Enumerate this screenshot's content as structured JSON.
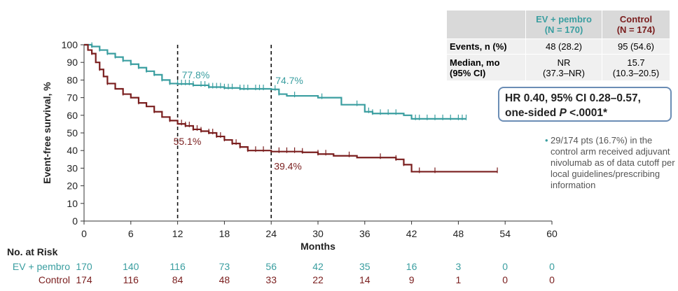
{
  "chart_data": {
    "type": "line",
    "xlabel": "Months",
    "ylabel": "Event-free survival, %",
    "xlim": [
      0,
      60
    ],
    "ylim": [
      0,
      100
    ],
    "xticks": [
      "0",
      "6",
      "12",
      "18",
      "24",
      "30",
      "36",
      "42",
      "48",
      "54",
      "60"
    ],
    "yticks": [
      "0",
      "10",
      "20",
      "30",
      "40",
      "50",
      "60",
      "70",
      "80",
      "90",
      "100"
    ],
    "reference_lines_x": [
      12,
      24
    ],
    "series": [
      {
        "name": "EV + pembro",
        "color": "#3a9ea0",
        "x": [
          0,
          1,
          2,
          3,
          4,
          5,
          6,
          7,
          8,
          9,
          10,
          11,
          12,
          14,
          16,
          18,
          20,
          22,
          24,
          25,
          26,
          28,
          30,
          32,
          33,
          36,
          37,
          40,
          41,
          42,
          44,
          46,
          48,
          49
        ],
        "y": [
          100,
          99,
          97,
          95,
          93,
          91,
          89,
          87,
          85,
          83,
          80,
          78,
          77.8,
          77,
          76,
          75.5,
          75,
          75,
          74.7,
          72,
          71,
          71,
          70,
          70,
          66,
          62,
          61,
          61,
          60,
          58,
          58,
          58,
          58,
          58
        ],
        "censor_x": [
          1,
          2,
          3,
          4,
          5,
          6,
          7,
          8,
          9,
          10,
          11,
          12,
          12.5,
          13,
          13.5,
          14,
          15,
          15.5,
          16,
          16.5,
          17,
          17.5,
          18,
          18.5,
          19,
          20,
          20.5,
          21,
          22,
          22.5,
          23,
          24.5,
          25,
          27,
          30.5,
          35,
          36.5,
          37,
          38,
          39,
          40,
          42.5,
          43,
          44,
          45,
          46,
          47,
          48,
          48.5,
          49
        ]
      },
      {
        "name": "Control",
        "color": "#7a1e1e",
        "x": [
          0,
          0.5,
          1,
          1.5,
          2,
          2.5,
          3,
          4,
          5,
          6,
          7,
          8,
          9,
          10,
          11,
          12,
          13,
          14,
          15,
          16,
          17,
          18,
          19,
          20,
          21,
          24,
          28,
          30,
          32,
          35,
          40,
          41,
          42,
          48,
          53
        ],
        "y": [
          100,
          97,
          95,
          90,
          86,
          82,
          78,
          75,
          72,
          70,
          67,
          65,
          62,
          59,
          57,
          55.1,
          54,
          52,
          51,
          50,
          48,
          46,
          44,
          42,
          40,
          39.4,
          39,
          38,
          37,
          36,
          35,
          32,
          28,
          28,
          28
        ],
        "censor_x": [
          1,
          2,
          3,
          5,
          7,
          9,
          11,
          12.5,
          13,
          13.5,
          14,
          14.5,
          15,
          16,
          16.5,
          17,
          17.5,
          18,
          19,
          19.5,
          20,
          21,
          22,
          23,
          25,
          26,
          27,
          28,
          30,
          31,
          34,
          38,
          40,
          41,
          43,
          45,
          53
        ]
      }
    ],
    "annotations": [
      {
        "text": "77.8%",
        "x": 12,
        "series": "EV + pembro"
      },
      {
        "text": "74.7%",
        "x": 24,
        "series": "EV + pembro"
      },
      {
        "text": "55.1%",
        "x": 12,
        "series": "Control"
      },
      {
        "text": "39.4%",
        "x": 24,
        "series": "Control"
      }
    ]
  },
  "risk_table": {
    "title": "No. at Risk",
    "rows": [
      {
        "label": "EV + pembro",
        "color": "#3a9ea0",
        "values": [
          "170",
          "140",
          "116",
          "73",
          "56",
          "42",
          "35",
          "16",
          "3",
          "0",
          "0"
        ]
      },
      {
        "label": "Control",
        "color": "#7a1e1e",
        "values": [
          "174",
          "116",
          "84",
          "48",
          "33",
          "22",
          "14",
          "9",
          "1",
          "0",
          "0"
        ]
      }
    ]
  },
  "summary_table": {
    "col1_line1": "EV + pembro",
    "col1_line2": "(N = 170)",
    "col2_line1": "Control",
    "col2_line2": "(N = 174)",
    "col1_color": "#3a9ea0",
    "col2_color": "#7a1e1e",
    "rows": [
      {
        "label": "Events, n (%)",
        "v1": "48 (28.2)",
        "v2": "95 (54.6)"
      },
      {
        "label_line1": "Median, mo",
        "label_line2": "(95% CI)",
        "v1_line1": "NR",
        "v1_line2": "(37.3–NR)",
        "v2_line1": "15.7",
        "v2_line2": "(10.3–20.5)"
      }
    ]
  },
  "hr_box": {
    "line1": "HR 0.40, 95% CI 0.28–0.57,",
    "line2_prefix": "one-sided ",
    "line2_p": "P",
    "line2_suffix": " <.0001*"
  },
  "note": {
    "bullet": "•",
    "text": "29/174 pts (16.7%) in the control arm received adjuvant nivolumab as of data cutoff per local guidelines/prescribing information"
  }
}
